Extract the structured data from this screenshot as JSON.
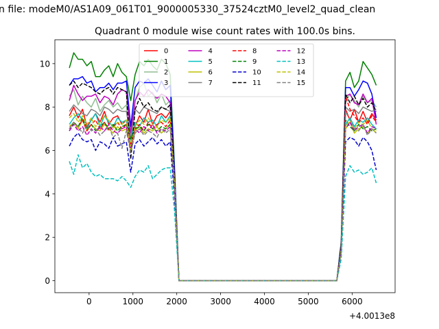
{
  "figure": {
    "suptitle": "n file: modeM0/AS1A09_061T01_9000005330_37524cztM0_level2_quad_clean",
    "title": "Quadrant 0 module wise count rates with 100.0s bins."
  },
  "chart_data": {
    "type": "line",
    "title": "Quadrant 0 module wise count rates with 100.0s bins.",
    "xlabel": "",
    "ylabel": "",
    "x_offset_label": "+4.0013e8",
    "xlim": [
      -780,
      6980
    ],
    "ylim": [
      -0.55,
      11.1
    ],
    "xticks": [
      0,
      1000,
      2000,
      3000,
      4000,
      5000,
      6000
    ],
    "xtick_labels": [
      "0",
      "1000",
      "2000",
      "3000",
      "4000",
      "5000",
      "6000"
    ],
    "yticks": [
      0,
      2,
      4,
      6,
      8,
      10
    ],
    "ytick_labels": [
      "0",
      "2",
      "4",
      "6",
      "8",
      "10"
    ],
    "grid": false,
    "legend": {
      "placement": "top-center",
      "columns": 4
    },
    "x": [
      -450,
      -350,
      -250,
      -150,
      -50,
      50,
      150,
      250,
      350,
      450,
      550,
      650,
      750,
      850,
      950,
      1050,
      1150,
      1250,
      1350,
      1450,
      1550,
      1650,
      1750,
      1850,
      1950,
      2050,
      2150,
      5650,
      5750,
      5850,
      5950,
      6050,
      6150,
      6250,
      6350,
      6450,
      6550
    ],
    "series": [
      {
        "name": "0",
        "color": "#ff0000",
        "dash": "solid",
        "values": [
          7.6,
          8.0,
          7.5,
          7.9,
          7.1,
          7.4,
          7.7,
          7.3,
          7.8,
          7.2,
          7.5,
          7.6,
          7.2,
          7.4,
          6.2,
          7.1,
          7.6,
          7.3,
          7.9,
          7.2,
          7.6,
          7.7,
          7.5,
          7.8,
          4.5,
          0,
          0,
          0,
          1.5,
          7.9,
          7.4,
          7.9,
          7.3,
          7.8,
          7.3,
          7.7,
          7.4
        ]
      },
      {
        "name": "1",
        "color": "#008000",
        "dash": "solid",
        "values": [
          9.8,
          10.5,
          10.2,
          10.2,
          9.9,
          10.1,
          9.4,
          9.4,
          9.7,
          9.9,
          9.4,
          10.0,
          9.6,
          9.4,
          8.3,
          9.5,
          10.1,
          9.9,
          10.2,
          9.9,
          9.7,
          10.2,
          10.0,
          9.5,
          5.2,
          0,
          0,
          0,
          1.8,
          9.2,
          9.6,
          8.9,
          9.2,
          10.1,
          9.8,
          9.5,
          9.0
        ]
      },
      {
        "name": "2",
        "color": "#8fbc8f",
        "dash": "solid",
        "values": [
          8.5,
          8.8,
          8.1,
          8.5,
          8.2,
          8.0,
          8.4,
          7.8,
          8.1,
          8.3,
          8.0,
          8.2,
          7.9,
          8.1,
          6.2,
          8.3,
          8.9,
          9.1,
          8.5,
          8.7,
          8.2,
          8.6,
          8.1,
          8.3,
          4.8,
          0,
          0,
          0,
          1.6,
          8.2,
          8.6,
          8.3,
          8.0,
          8.5,
          8.2,
          8.3,
          8.0
        ]
      },
      {
        "name": "3",
        "color": "#0000ff",
        "dash": "solid",
        "values": [
          9.0,
          9.3,
          9.3,
          9.4,
          9.1,
          9.2,
          8.7,
          8.9,
          8.9,
          9.1,
          8.8,
          9.1,
          9.1,
          9.2,
          7.1,
          8.9,
          9.2,
          9.1,
          9.3,
          9.0,
          8.7,
          9.2,
          8.8,
          9.0,
          5.0,
          0,
          0,
          0,
          1.7,
          8.9,
          8.9,
          8.5,
          8.8,
          9.2,
          9.1,
          8.6,
          7.5
        ]
      },
      {
        "name": "4",
        "color": "#bf00bf",
        "dash": "solid",
        "values": [
          8.3,
          9.0,
          8.6,
          8.3,
          8.5,
          8.5,
          8.6,
          8.2,
          8.5,
          8.4,
          8.1,
          8.6,
          8.8,
          8.7,
          6.8,
          8.3,
          8.7,
          8.5,
          8.8,
          8.6,
          8.4,
          8.6,
          8.5,
          8.2,
          4.6,
          0,
          0,
          0,
          1.5,
          8.5,
          8.6,
          8.2,
          8.1,
          8.6,
          8.2,
          8.4,
          7.2
        ]
      },
      {
        "name": "5",
        "color": "#00bfbf",
        "dash": "solid",
        "values": [
          7.2,
          7.5,
          7.7,
          7.4,
          7.0,
          7.4,
          7.7,
          7.1,
          7.6,
          7.3,
          7.1,
          7.5,
          7.3,
          7.4,
          6.5,
          7.3,
          7.1,
          7.5,
          7.3,
          7.4,
          7.1,
          7.6,
          7.3,
          7.6,
          4.4,
          0,
          0,
          0,
          1.4,
          7.2,
          7.5,
          7.1,
          7.4,
          7.3,
          7.5,
          7.2,
          7.0
        ]
      },
      {
        "name": "6",
        "color": "#bfbf00",
        "dash": "solid",
        "values": [
          7.1,
          7.3,
          7.0,
          7.4,
          6.9,
          7.2,
          7.0,
          6.9,
          7.2,
          7.0,
          6.8,
          7.1,
          6.9,
          7.0,
          6.0,
          6.9,
          7.1,
          6.8,
          7.0,
          6.9,
          7.1,
          6.8,
          7.0,
          7.2,
          4.2,
          0,
          0,
          0,
          1.3,
          7.0,
          7.3,
          6.8,
          7.0,
          7.1,
          6.8,
          7.0,
          6.8
        ]
      },
      {
        "name": "7",
        "color": "#808080",
        "dash": "solid",
        "values": [
          7.8,
          8.1,
          7.9,
          7.7,
          7.6,
          7.9,
          7.8,
          7.6,
          8.0,
          7.9,
          7.7,
          7.9,
          7.8,
          7.8,
          6.6,
          7.9,
          7.7,
          8.0,
          7.9,
          7.8,
          7.7,
          8.0,
          7.9,
          7.8,
          4.6,
          0,
          0,
          0,
          1.5,
          8.0,
          7.8,
          7.9,
          7.7,
          8.0,
          7.9,
          7.8,
          7.9
        ]
      },
      {
        "name": "8",
        "color": "#ff0000",
        "dash": "dashed",
        "values": [
          7.0,
          7.3,
          7.1,
          7.4,
          6.9,
          7.2,
          7.4,
          7.0,
          7.3,
          6.9,
          7.1,
          7.3,
          7.0,
          7.2,
          6.3,
          7.0,
          7.2,
          6.9,
          7.3,
          7.0,
          7.2,
          7.3,
          7.1,
          7.4,
          4.3,
          0,
          0,
          0,
          1.4,
          8.5,
          7.9,
          7.6,
          7.3,
          7.5,
          7.2,
          7.6,
          7.3
        ]
      },
      {
        "name": "9",
        "color": "#008000",
        "dash": "dashed",
        "values": [
          6.9,
          7.3,
          7.1,
          7.5,
          7.0,
          7.2,
          6.9,
          7.1,
          7.3,
          7.0,
          7.2,
          6.9,
          7.1,
          7.2,
          6.5,
          7.0,
          7.1,
          6.9,
          7.2,
          7.0,
          6.9,
          7.1,
          7.0,
          7.2,
          4.3,
          0,
          0,
          0,
          1.4,
          7.4,
          7.1,
          6.9,
          7.2,
          7.0,
          7.1,
          6.9,
          7.0
        ]
      },
      {
        "name": "10",
        "color": "#0000cc",
        "dash": "dashed",
        "values": [
          6.2,
          6.6,
          6.8,
          6.5,
          6.4,
          6.5,
          6.0,
          6.4,
          6.3,
          6.1,
          6.6,
          6.2,
          6.3,
          6.4,
          5.0,
          6.3,
          6.5,
          6.2,
          6.4,
          6.6,
          6.3,
          6.5,
          6.2,
          6.4,
          3.8,
          0,
          0,
          0,
          1.3,
          6.4,
          6.6,
          6.5,
          6.2,
          6.6,
          6.4,
          6.0,
          5.1
        ]
      },
      {
        "name": "11",
        "color": "#000000",
        "dash": "dashed",
        "values": [
          9.0,
          9.2,
          8.9,
          9.1,
          9.0,
          8.9,
          8.7,
          8.6,
          8.8,
          8.9,
          8.6,
          8.9,
          8.8,
          8.7,
          5.6,
          7.9,
          8.4,
          8.0,
          8.2,
          7.9,
          7.8,
          8.0,
          7.9,
          8.1,
          4.6,
          0,
          0,
          0,
          1.6,
          8.6,
          8.2,
          8.5,
          8.1,
          8.4,
          8.0,
          8.2,
          7.8
        ]
      },
      {
        "name": "12",
        "color": "#bf00bf",
        "dash": "dashed",
        "values": [
          6.9,
          7.2,
          6.9,
          7.1,
          6.7,
          7.0,
          6.8,
          7.1,
          6.9,
          7.2,
          6.9,
          6.8,
          7.0,
          7.1,
          6.1,
          7.0,
          6.8,
          7.1,
          6.9,
          7.2,
          6.8,
          7.0,
          6.9,
          7.1,
          4.1,
          0,
          0,
          0,
          1.4,
          7.0,
          7.3,
          6.9,
          7.1,
          7.2,
          6.8,
          7.1,
          7.0
        ]
      },
      {
        "name": "13",
        "color": "#00bfbf",
        "dash": "dashed",
        "values": [
          5.5,
          4.9,
          5.8,
          5.2,
          5.4,
          5.0,
          4.8,
          4.9,
          4.7,
          4.7,
          4.7,
          4.6,
          4.8,
          4.6,
          4.3,
          4.8,
          5.1,
          5.0,
          5.3,
          4.7,
          4.9,
          5.1,
          5.2,
          5.2,
          3.2,
          0,
          0,
          0,
          1.0,
          4.8,
          5.3,
          5.0,
          5.1,
          4.9,
          5.0,
          5.2,
          4.5
        ]
      },
      {
        "name": "14",
        "color": "#bfbf00",
        "dash": "dashed",
        "values": [
          7.5,
          7.7,
          7.3,
          7.6,
          7.2,
          7.5,
          7.1,
          7.3,
          7.6,
          7.4,
          7.0,
          7.3,
          7.2,
          7.4,
          6.2,
          7.1,
          7.4,
          7.2,
          7.5,
          7.2,
          7.1,
          7.4,
          7.3,
          7.5,
          4.4,
          0,
          0,
          0,
          1.4,
          7.1,
          7.4,
          7.0,
          7.3,
          7.2,
          7.4,
          7.0,
          6.9
        ]
      },
      {
        "name": "15",
        "color": "#808080",
        "dash": "dashed",
        "values": [
          7.0,
          7.3,
          7.1,
          6.8,
          7.2,
          6.9,
          7.0,
          6.7,
          6.9,
          7.1,
          6.6,
          6.8,
          6.1,
          6.9,
          5.9,
          6.8,
          7.0,
          6.7,
          6.9,
          6.8,
          6.6,
          7.0,
          6.8,
          7.0,
          4.1,
          0,
          0,
          0,
          1.3,
          7.8,
          7.4,
          7.0,
          6.9,
          7.2,
          6.7,
          7.0,
          6.8
        ]
      }
    ]
  }
}
